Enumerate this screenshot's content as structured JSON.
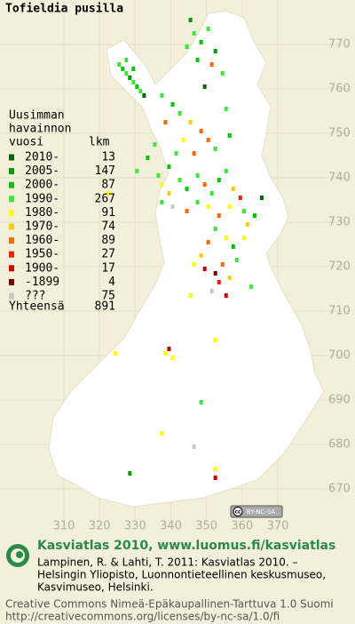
{
  "title": "Tofieldia pusilla",
  "map": {
    "xlim": [
      310,
      370
    ],
    "ylim": [
      670,
      770
    ],
    "xticks": [
      310,
      320,
      330,
      340,
      350,
      360,
      370
    ],
    "yticks": [
      670,
      680,
      690,
      700,
      710,
      720,
      730,
      740,
      750,
      760,
      770
    ],
    "cells": [
      [
        325,
        765,
        3
      ],
      [
        326,
        764,
        2
      ],
      [
        327,
        763,
        3
      ],
      [
        328,
        762,
        1
      ],
      [
        329,
        761,
        3
      ],
      [
        330,
        760,
        2
      ],
      [
        331,
        759,
        3
      ],
      [
        332,
        758,
        0
      ],
      [
        327,
        766,
        3
      ],
      [
        329,
        764,
        2
      ],
      [
        345,
        775,
        1
      ],
      [
        346,
        772,
        3
      ],
      [
        348,
        770,
        2
      ],
      [
        350,
        773,
        3
      ],
      [
        352,
        768,
        1
      ],
      [
        344,
        769,
        3
      ],
      [
        347,
        766,
        2
      ],
      [
        351,
        765,
        6
      ],
      [
        354,
        763,
        3
      ],
      [
        349,
        760,
        0
      ],
      [
        337,
        758,
        3
      ],
      [
        340,
        756,
        2
      ],
      [
        342,
        754,
        3
      ],
      [
        338,
        752,
        6
      ],
      [
        345,
        752,
        5
      ],
      [
        348,
        750,
        6
      ],
      [
        350,
        748,
        6
      ],
      [
        352,
        746,
        3
      ],
      [
        355,
        755,
        3
      ],
      [
        356,
        749,
        2
      ],
      [
        343,
        748,
        4
      ],
      [
        346,
        745,
        6
      ],
      [
        341,
        745,
        3
      ],
      [
        339,
        742,
        2
      ],
      [
        336,
        740,
        3
      ],
      [
        337,
        738,
        4
      ],
      [
        339,
        736,
        5
      ],
      [
        342,
        739,
        3
      ],
      [
        344,
        737,
        2
      ],
      [
        347,
        740,
        3
      ],
      [
        349,
        738,
        6
      ],
      [
        351,
        736,
        3
      ],
      [
        353,
        739,
        2
      ],
      [
        355,
        741,
        3
      ],
      [
        357,
        737,
        5
      ],
      [
        359,
        735,
        7
      ],
      [
        360,
        732,
        3
      ],
      [
        356,
        733,
        4
      ],
      [
        353,
        731,
        6
      ],
      [
        350,
        733,
        4
      ],
      [
        347,
        734,
        3
      ],
      [
        344,
        732,
        6
      ],
      [
        340,
        733,
        10
      ],
      [
        337,
        734,
        3
      ],
      [
        352,
        728,
        3
      ],
      [
        355,
        726,
        4
      ],
      [
        357,
        724,
        2
      ],
      [
        350,
        725,
        6
      ],
      [
        348,
        722,
        5
      ],
      [
        346,
        720,
        4
      ],
      [
        349,
        719,
        8
      ],
      [
        352,
        718,
        9
      ],
      [
        353,
        716,
        7
      ],
      [
        356,
        717,
        5
      ],
      [
        358,
        721,
        3
      ],
      [
        354,
        720,
        6
      ],
      [
        351,
        714,
        10
      ],
      [
        345,
        713,
        4
      ],
      [
        355,
        713,
        8
      ],
      [
        361,
        729,
        5
      ],
      [
        363,
        731,
        2
      ],
      [
        360,
        726,
        4
      ],
      [
        339,
        701,
        8
      ],
      [
        338,
        700,
        4
      ],
      [
        340,
        699,
        4
      ],
      [
        324,
        700,
        4
      ],
      [
        352,
        703,
        4
      ],
      [
        348,
        689,
        3
      ],
      [
        337,
        682,
        4
      ],
      [
        346,
        679,
        10
      ],
      [
        328,
        673,
        1
      ],
      [
        352,
        674,
        4
      ],
      [
        352,
        672,
        8
      ],
      [
        322,
        736,
        4
      ],
      [
        330,
        741,
        3
      ],
      [
        333,
        744,
        2
      ],
      [
        335,
        747,
        3
      ],
      [
        362,
        715,
        3
      ],
      [
        365,
        735,
        0
      ]
    ]
  },
  "legend": {
    "heading": [
      "Uusimman",
      "havainnon",
      "vuosi"
    ],
    "count_heading": "lkm",
    "items": [
      {
        "label": "2010-",
        "count": 13,
        "color": "#006a00"
      },
      {
        "label": "2005-",
        "count": 147,
        "color": "#009a00"
      },
      {
        "label": "2000-",
        "count": 87,
        "color": "#00c800"
      },
      {
        "label": "1990-",
        "count": 267,
        "color": "#3ae83a"
      },
      {
        "label": "1980-",
        "count": 91,
        "color": "#ffff00"
      },
      {
        "label": "1970-",
        "count": 74,
        "color": "#ffcc00"
      },
      {
        "label": "1960-",
        "count": 89,
        "color": "#ff6a00"
      },
      {
        "label": "1950-",
        "count": 27,
        "color": "#ee2200"
      },
      {
        "label": "1900-",
        "count": 17,
        "color": "#cc0000"
      },
      {
        "label": "-1899",
        "count": 4,
        "color": "#7a0000"
      },
      {
        "label": "???",
        "count": 75,
        "color": "#c8c8c8"
      }
    ],
    "total_label": "Yhteensä",
    "total": 891
  },
  "badge": {
    "cc": "cc",
    "license": "BY-NC-SA"
  },
  "footer": {
    "site": "Kasviatlas 2010, www.luomus.fi/kasviatlas",
    "citation": [
      "Lampinen, R. & Lahti, T. 2011: Kasviatlas 2010. –",
      "Helsingin Yliopisto, Luonnontieteellinen keskusmuseo,",
      "Kasvimuseo, Helsinki."
    ],
    "license": [
      "Creative Commons Nimeä-Epäkaupallinen-Tarttuva 1.0 Suomi",
      "http://creativecommons.org/licenses/by-nc-sa/1.0/fi"
    ]
  }
}
